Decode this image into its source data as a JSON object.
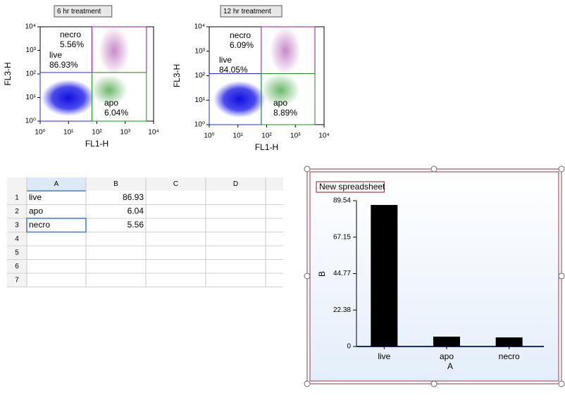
{
  "plots": [
    {
      "title": "6 hr treatment",
      "x_label": "FL1-H",
      "y_label": "FL3-H",
      "scale": "log",
      "xlim": [
        1,
        10000
      ],
      "ylim": [
        1,
        10000
      ],
      "xticks": [
        {
          "value": 1,
          "label": "10⁰"
        },
        {
          "value": 10,
          "label": "10¹"
        },
        {
          "value": 100,
          "label": "10²"
        },
        {
          "value": 1000,
          "label": "10³"
        },
        {
          "value": 10000,
          "label": "10⁴"
        }
      ],
      "yticks": [
        {
          "value": 1,
          "label": "10⁰"
        },
        {
          "value": 10,
          "label": "10¹"
        },
        {
          "value": 100,
          "label": "10²"
        },
        {
          "value": 1000,
          "label": "10³"
        },
        {
          "value": 10000,
          "label": "10⁴"
        }
      ],
      "gates": [
        {
          "name": "necro",
          "value": 5.56,
          "value_label": "5.56%",
          "color": "#8b1a8b",
          "x": [
            67,
            5600
          ],
          "y": [
            115,
            10000
          ]
        },
        {
          "name": "live",
          "value": 86.93,
          "value_label": "86.93%",
          "color": "#2a2ad8",
          "x": [
            1,
            67
          ],
          "y": [
            1,
            115
          ]
        },
        {
          "name": "apo",
          "value": 6.04,
          "value_label": "6.04%",
          "color": "#228b22",
          "x": [
            67,
            5600
          ],
          "y": [
            1,
            115
          ]
        }
      ]
    },
    {
      "title": "12 hr treatment",
      "x_label": "FL1-H",
      "y_label": "FL3-H",
      "scale": "log",
      "xlim": [
        1,
        10000
      ],
      "ylim": [
        1,
        10000
      ],
      "xticks": [
        {
          "value": 1,
          "label": "10⁰"
        },
        {
          "value": 10,
          "label": "10¹"
        },
        {
          "value": 100,
          "label": "10²"
        },
        {
          "value": 1000,
          "label": "10³"
        },
        {
          "value": 10000,
          "label": "10⁴"
        }
      ],
      "yticks": [
        {
          "value": 1,
          "label": "10⁰"
        },
        {
          "value": 10,
          "label": "10¹"
        },
        {
          "value": 100,
          "label": "10²"
        },
        {
          "value": 1000,
          "label": "10³"
        },
        {
          "value": 10000,
          "label": "10⁴"
        }
      ],
      "gates": [
        {
          "name": "necro",
          "value": 6.09,
          "value_label": "6.09%",
          "color": "#8b1a8b",
          "x": [
            65,
            4800
          ],
          "y": [
            122,
            10000
          ]
        },
        {
          "name": "live",
          "value": 84.05,
          "value_label": "84.05%",
          "color": "#2a2ad8",
          "x": [
            1,
            65
          ],
          "y": [
            1,
            122
          ]
        },
        {
          "name": "apo",
          "value": 8.89,
          "value_label": "8.89%",
          "color": "#228b22",
          "x": [
            65,
            4800
          ],
          "y": [
            1,
            122
          ]
        }
      ]
    }
  ],
  "spreadsheet": {
    "columns": [
      "A",
      "B",
      "C",
      "D"
    ],
    "row_numbers": [
      1,
      2,
      3,
      4,
      5,
      6,
      7
    ],
    "rows": [
      [
        "live",
        86.93
      ],
      [
        "apo",
        6.04
      ],
      [
        "necro",
        5.56
      ]
    ]
  },
  "chart_data": {
    "type": "bar",
    "title": "New spreadsheet",
    "x_label": "A",
    "y_label": "B",
    "categories": [
      "live",
      "apo",
      "necro"
    ],
    "values": [
      86.93,
      6.04,
      5.56
    ],
    "color": "#000000",
    "ylim": [
      0,
      89.54
    ],
    "yticks": [
      0,
      22.38,
      44.77,
      67.15,
      89.54
    ]
  }
}
